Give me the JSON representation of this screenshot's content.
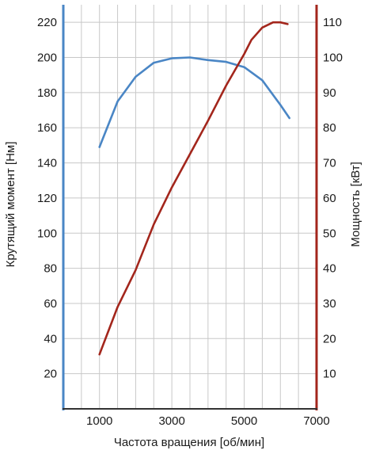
{
  "chart_data": {
    "type": "line",
    "xlabel": "Частота вращения [об/мин]",
    "ylabel_left": "Крутящий момент [Нм]",
    "ylabel_right": "Мощность [кВт]",
    "xlim": [
      0,
      7000
    ],
    "ylim_left": [
      0,
      230
    ],
    "ylim_right": [
      0,
      115
    ],
    "x_ticks": [
      1000,
      3000,
      5000,
      7000
    ],
    "y_ticks_left": [
      20,
      40,
      60,
      80,
      100,
      120,
      140,
      160,
      180,
      200,
      220
    ],
    "y_ticks_right": [
      10,
      20,
      30,
      40,
      50,
      60,
      70,
      80,
      90,
      100,
      110
    ],
    "x_grid_step": 500,
    "grid": true,
    "colors": {
      "torque": "#4a86c5",
      "power": "#a3261c",
      "left_axis": "#4a86c5",
      "right_axis": "#a3261c",
      "bottom_axis": "#333333"
    },
    "series": [
      {
        "key": "torque",
        "axis": "left",
        "points": [
          [
            1000,
            149
          ],
          [
            1500,
            175
          ],
          [
            2000,
            189
          ],
          [
            2500,
            197
          ],
          [
            3000,
            199.5
          ],
          [
            3500,
            200
          ],
          [
            4000,
            198.5
          ],
          [
            4500,
            197.5
          ],
          [
            5000,
            194.5
          ],
          [
            5500,
            187
          ],
          [
            6000,
            173
          ],
          [
            6250,
            165.5
          ]
        ]
      },
      {
        "key": "power",
        "axis": "right",
        "points": [
          [
            1000,
            15.5
          ],
          [
            1500,
            29
          ],
          [
            2000,
            39.5
          ],
          [
            2500,
            52.5
          ],
          [
            3000,
            63
          ],
          [
            3500,
            72.5
          ],
          [
            4000,
            82
          ],
          [
            4500,
            92
          ],
          [
            5000,
            101
          ],
          [
            5200,
            105
          ],
          [
            5500,
            108.5
          ],
          [
            5800,
            110
          ],
          [
            6000,
            110
          ],
          [
            6200,
            109.5
          ]
        ]
      }
    ]
  }
}
